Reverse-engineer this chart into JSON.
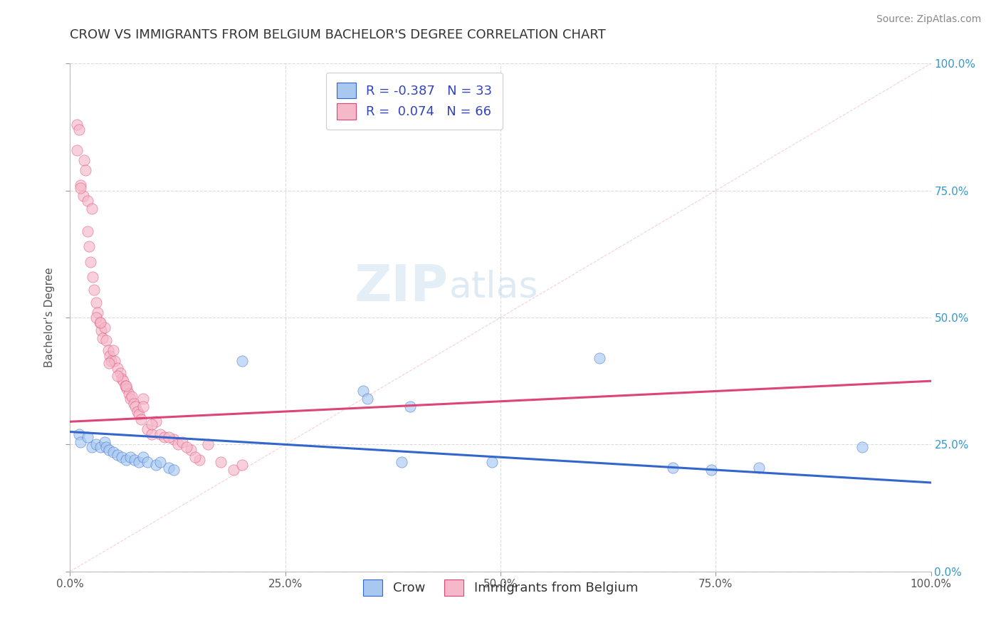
{
  "title": "CROW VS IMMIGRANTS FROM BELGIUM BACHELOR'S DEGREE CORRELATION CHART",
  "source": "Source: ZipAtlas.com",
  "ylabel": "Bachelor's Degree",
  "xlim": [
    0,
    1.0
  ],
  "ylim": [
    0,
    1.0
  ],
  "xticks": [
    0.0,
    0.25,
    0.5,
    0.75,
    1.0
  ],
  "yticks": [
    0.0,
    0.25,
    0.5,
    0.75,
    1.0
  ],
  "xticklabels": [
    "0.0%",
    "25.0%",
    "50.0%",
    "75.0%",
    "100.0%"
  ],
  "yticklabels_right": [
    "0.0%",
    "25.0%",
    "50.0%",
    "75.0%",
    "100.0%"
  ],
  "crow_color": "#a8c8f0",
  "belgium_color": "#f5b8c8",
  "crow_line_color": "#3366cc",
  "belgium_line_color": "#dd4477",
  "diagonal_color": "#f0b0c0",
  "legend_text_color": "#3344bb",
  "crow_R": -0.387,
  "crow_N": 33,
  "belgium_R": 0.074,
  "belgium_N": 66,
  "crow_intercept": 0.275,
  "crow_slope": -0.1,
  "belgium_intercept": 0.295,
  "belgium_slope": 0.08,
  "crow_x": [
    0.01,
    0.012,
    0.02,
    0.025,
    0.03,
    0.035,
    0.04,
    0.042,
    0.045,
    0.05,
    0.055,
    0.06,
    0.065,
    0.07,
    0.075,
    0.08,
    0.085,
    0.09,
    0.1,
    0.105,
    0.115,
    0.12,
    0.2,
    0.34,
    0.345,
    0.385,
    0.395,
    0.49,
    0.615,
    0.7,
    0.745,
    0.8,
    0.92
  ],
  "crow_y": [
    0.27,
    0.255,
    0.265,
    0.245,
    0.25,
    0.245,
    0.255,
    0.245,
    0.24,
    0.235,
    0.23,
    0.225,
    0.22,
    0.225,
    0.22,
    0.215,
    0.225,
    0.215,
    0.21,
    0.215,
    0.205,
    0.2,
    0.415,
    0.355,
    0.34,
    0.215,
    0.325,
    0.215,
    0.42,
    0.205,
    0.2,
    0.205,
    0.245
  ],
  "belgium_x": [
    0.008,
    0.01,
    0.012,
    0.015,
    0.016,
    0.018,
    0.02,
    0.022,
    0.024,
    0.026,
    0.028,
    0.03,
    0.032,
    0.034,
    0.036,
    0.038,
    0.04,
    0.042,
    0.044,
    0.046,
    0.048,
    0.05,
    0.052,
    0.055,
    0.058,
    0.06,
    0.062,
    0.064,
    0.066,
    0.068,
    0.07,
    0.072,
    0.074,
    0.076,
    0.078,
    0.08,
    0.082,
    0.085,
    0.09,
    0.095,
    0.1,
    0.105,
    0.11,
    0.12,
    0.125,
    0.13,
    0.14,
    0.15,
    0.16,
    0.175,
    0.19,
    0.2,
    0.02,
    0.025,
    0.008,
    0.012,
    0.03,
    0.035,
    0.045,
    0.055,
    0.065,
    0.085,
    0.095,
    0.115,
    0.135,
    0.145
  ],
  "belgium_y": [
    0.88,
    0.87,
    0.76,
    0.74,
    0.81,
    0.79,
    0.67,
    0.64,
    0.61,
    0.58,
    0.555,
    0.53,
    0.51,
    0.49,
    0.475,
    0.46,
    0.48,
    0.455,
    0.435,
    0.425,
    0.415,
    0.435,
    0.415,
    0.4,
    0.39,
    0.38,
    0.375,
    0.365,
    0.36,
    0.35,
    0.34,
    0.345,
    0.33,
    0.325,
    0.315,
    0.31,
    0.3,
    0.34,
    0.28,
    0.27,
    0.295,
    0.27,
    0.265,
    0.26,
    0.25,
    0.255,
    0.24,
    0.22,
    0.25,
    0.215,
    0.2,
    0.21,
    0.73,
    0.715,
    0.83,
    0.755,
    0.5,
    0.49,
    0.41,
    0.385,
    0.365,
    0.325,
    0.29,
    0.265,
    0.245,
    0.225
  ],
  "background_color": "#ffffff",
  "grid_color": "#cccccc",
  "title_fontsize": 13,
  "axis_label_fontsize": 11,
  "tick_fontsize": 11,
  "legend_fontsize": 13,
  "source_fontsize": 10,
  "watermark_zip": "ZIP",
  "watermark_atlas": "atlas",
  "watermark_fontsize": 52
}
